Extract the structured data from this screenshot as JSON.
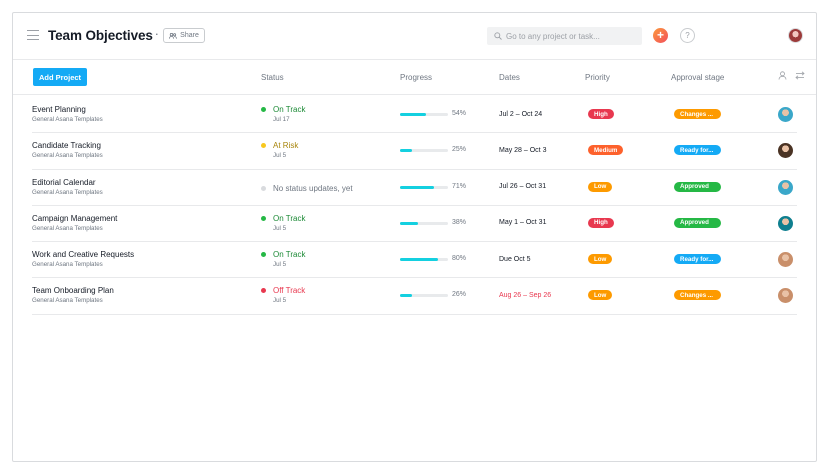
{
  "header": {
    "title": "Team Objectives",
    "more_label": "···",
    "share_label": "Share",
    "search_placeholder": "Go to any project or task...",
    "add_label": "+",
    "help_label": "?"
  },
  "toolbar": {
    "add_project_label": "Add Project"
  },
  "columns": [
    "Status",
    "Progress",
    "Dates",
    "Priority",
    "Approval stage"
  ],
  "colors": {
    "accent": "#14aaf5",
    "on_track": "#25b845",
    "at_risk": "#f8c81e",
    "off_track": "#e8384f",
    "no_status": "#d9dbde",
    "high": "#e8384f",
    "medium": "#fd612c",
    "low": "#fd9a00",
    "changes": "#fd9a00",
    "ready": "#14aaf5",
    "approved": "#25b845",
    "progress": "#14d0e0"
  },
  "rows": [
    {
      "name": "Event Planning",
      "sub": "General Asana Templates",
      "status": "On Track",
      "status_color": "#25b845",
      "status_date": "Jul 17",
      "progress": 0.54,
      "progress_label": "54%",
      "dates": "Jul 2 – Oct 24",
      "overdue": false,
      "priority": "High",
      "priority_color": "#e8384f",
      "approval": "Changes ...",
      "approval_color": "#fd9a00",
      "avatar": "#3aa7c9"
    },
    {
      "name": "Candidate Tracking",
      "sub": "General Asana Templates",
      "status": "At Risk",
      "status_color": "#f8c81e",
      "status_date": "Jul 5",
      "progress": 0.25,
      "progress_label": "25%",
      "dates": "May 28 – Oct 3",
      "overdue": false,
      "priority": "Medium",
      "priority_color": "#fd612c",
      "approval": "Ready for...",
      "approval_color": "#14aaf5",
      "avatar": "#4a3324"
    },
    {
      "name": "Editorial Calendar",
      "sub": "General Asana Templates",
      "status": "No status updates, yet",
      "status_color": "#d9dbde",
      "status_date": "",
      "progress": 0.71,
      "progress_label": "71%",
      "dates": "Jul 26 – Oct 31",
      "overdue": false,
      "priority": "Low",
      "priority_color": "#fd9a00",
      "approval": "Approved",
      "approval_color": "#25b845",
      "avatar": "#3aa7c9"
    },
    {
      "name": "Campaign Management",
      "sub": "General Asana Templates",
      "status": "On Track",
      "status_color": "#25b845",
      "status_date": "Jul 5",
      "progress": 0.38,
      "progress_label": "38%",
      "dates": "May 1 – Oct 31",
      "overdue": false,
      "priority": "High",
      "priority_color": "#e8384f",
      "approval": "Approved",
      "approval_color": "#25b845",
      "avatar": "#0f7f8f"
    },
    {
      "name": "Work and Creative Requests",
      "sub": "General Asana Templates",
      "status": "On Track",
      "status_color": "#25b845",
      "status_date": "Jul 5",
      "progress": 0.8,
      "progress_label": "80%",
      "dates": "Due Oct 5",
      "overdue": false,
      "priority": "Low",
      "priority_color": "#fd9a00",
      "approval": "Ready for...",
      "approval_color": "#14aaf5",
      "avatar": "#c98f6a"
    },
    {
      "name": "Team Onboarding Plan",
      "sub": "General Asana Templates",
      "status": "Off Track",
      "status_color": "#e8384f",
      "status_date": "Jul 5",
      "progress": 0.26,
      "progress_label": "26%",
      "dates": "Aug 26 – Sep 26",
      "overdue": true,
      "priority": "Low",
      "priority_color": "#fd9a00",
      "approval": "Changes ...",
      "approval_color": "#fd9a00",
      "avatar": "#c98f6a"
    }
  ]
}
